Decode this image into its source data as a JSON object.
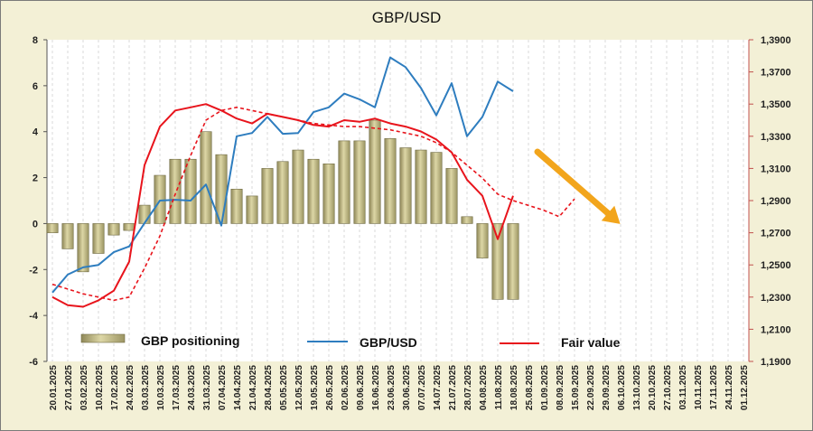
{
  "chart_data": {
    "type": "bar+line",
    "title": "GBP/USD",
    "x": [
      "20.01.2025",
      "27.01.2025",
      "03.02.2025",
      "10.02.2025",
      "17.02.2025",
      "24.02.2025",
      "03.03.2025",
      "10.03.2025",
      "17.03.2025",
      "24.03.2025",
      "31.03.2025",
      "07.04.2025",
      "14.04.2025",
      "21.04.2025",
      "28.04.2025",
      "05.05.2025",
      "12.05.2025",
      "19.05.2025",
      "26.05.2025",
      "02.06.2025",
      "09.06.2025",
      "16.06.2025",
      "23.06.2025",
      "30.06.2025",
      "07.07.2025",
      "14.07.2025",
      "21.07.2025",
      "28.07.2025",
      "04.08.2025",
      "11.08.2025",
      "18.08.2025",
      "25.08.2025",
      "01.09.2025",
      "08.09.2025",
      "15.09.2025",
      "22.09.2025",
      "29.09.2025",
      "06.10.2025",
      "13.10.2025",
      "20.10.2025",
      "27.10.2025",
      "03.11.2025",
      "10.11.2025",
      "17.11.2025",
      "24.11.2025",
      "01.12.2025"
    ],
    "left_axis": {
      "ylim": [
        -6,
        8
      ],
      "ticks": [
        "-6",
        "-4",
        "-2",
        "0",
        "2",
        "4",
        "6",
        "8"
      ]
    },
    "right_axis": {
      "ylim": [
        1.19,
        1.39
      ],
      "ticks": [
        "1,1900",
        "1,2100",
        "1,2300",
        "1,2500",
        "1,2700",
        "1,2900",
        "1,3100",
        "1,3300",
        "1,3500",
        "1,3700",
        "1,3900"
      ]
    },
    "series": [
      {
        "name": "GBP positioning",
        "type": "bar",
        "axis": "left",
        "color": "#c8c088",
        "values": [
          -0.4,
          -1.1,
          -2.1,
          -1.3,
          -0.5,
          -0.3,
          0.8,
          2.1,
          2.8,
          2.8,
          4.0,
          3.0,
          1.5,
          1.2,
          2.4,
          2.7,
          3.2,
          2.8,
          2.6,
          3.6,
          3.6,
          4.5,
          3.7,
          3.3,
          3.2,
          3.1,
          2.4,
          0.3,
          -1.5,
          -3.3,
          -3.3,
          null,
          null,
          null,
          null,
          null,
          null,
          null,
          null,
          null,
          null,
          null,
          null,
          null,
          null,
          null
        ]
      },
      {
        "name": "GBP/USD",
        "type": "line",
        "axis": "right",
        "color": "#2e7dbf",
        "values": [
          1.2328,
          1.244,
          1.2485,
          1.25,
          1.258,
          1.2615,
          1.276,
          1.29,
          1.2905,
          1.29,
          1.3,
          1.2745,
          1.33,
          1.332,
          1.342,
          1.3315,
          1.332,
          1.345,
          1.348,
          1.3565,
          1.353,
          1.348,
          1.379,
          1.373,
          1.36,
          1.343,
          1.363,
          1.33,
          1.342,
          1.364,
          1.358,
          null,
          null,
          null,
          null,
          null,
          null,
          null,
          null,
          null,
          null,
          null,
          null,
          null,
          null,
          null
        ]
      },
      {
        "name": "Fair value",
        "type": "line",
        "axis": "right",
        "color": "#e8141c",
        "values": [
          1.23,
          1.225,
          1.224,
          1.228,
          1.234,
          1.252,
          1.312,
          1.336,
          1.346,
          1.348,
          1.35,
          1.346,
          1.341,
          1.338,
          1.344,
          1.342,
          1.34,
          1.337,
          1.336,
          1.34,
          1.339,
          1.341,
          1.338,
          1.336,
          1.333,
          1.328,
          1.32,
          1.303,
          1.293,
          1.266,
          1.293,
          null,
          null,
          null,
          null,
          null,
          null,
          null,
          null,
          null,
          null,
          null,
          null,
          null,
          null,
          null
        ]
      },
      {
        "name": "Fair value",
        "type": "line",
        "axis": "right",
        "style": "dashed",
        "color": "#e8141c",
        "values": [
          1.238,
          1.235,
          1.232,
          1.23,
          1.228,
          1.23,
          1.248,
          1.268,
          1.294,
          1.318,
          1.34,
          1.346,
          1.348,
          1.346,
          1.344,
          1.342,
          1.34,
          1.338,
          1.337,
          1.336,
          1.336,
          1.335,
          1.334,
          1.332,
          1.33,
          1.326,
          1.32,
          1.312,
          1.304,
          1.294,
          1.29,
          1.287,
          1.284,
          1.28,
          1.291,
          null,
          null,
          null,
          null,
          null,
          null,
          null,
          null,
          null,
          null,
          null
        ]
      }
    ],
    "legend": [
      "GBP positioning",
      "GBP/USD",
      "Fair value"
    ],
    "annotation": {
      "type": "arrow",
      "color": "#f2a51c",
      "direction": "down-right"
    },
    "grid": "vertical"
  }
}
